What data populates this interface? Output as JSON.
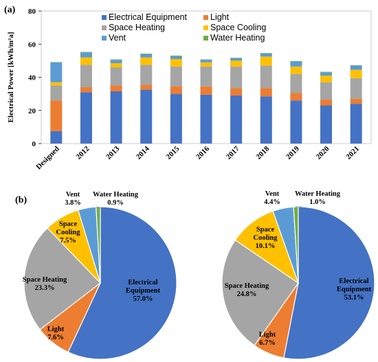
{
  "panel_labels": [
    "(a)",
    "(b)"
  ],
  "colors": {
    "Electrical Equipment": "#4472C4",
    "Light": "#ED7D31",
    "Space Heating": "#A5A5A5",
    "Space Cooling": "#FFC000",
    "Vent": "#5B9BD5",
    "Water Heating": "#70AD47"
  },
  "chart_data": [
    {
      "type": "bar",
      "stacked": true,
      "ylabel": "Electrical Power [kWh/m²a]",
      "ylim": [
        0,
        80
      ],
      "yticks": [
        0,
        20,
        40,
        60,
        80
      ],
      "grid": false,
      "legend": "top",
      "categories": [
        "Designed",
        "2012",
        "2013",
        "2014",
        "2015",
        "2016",
        "2017",
        "2018",
        "2019",
        "2020",
        "2021"
      ],
      "series": [
        {
          "name": "Electrical Equipment",
          "values": [
            7.5,
            31,
            31.5,
            32.5,
            30,
            29.5,
            29,
            28.5,
            26,
            23,
            24
          ]
        },
        {
          "name": "Light",
          "values": [
            18.5,
            3,
            3.5,
            3,
            4.5,
            5,
            4.5,
            5,
            4.5,
            3.5,
            3
          ]
        },
        {
          "name": "Space Heating",
          "values": [
            9,
            13.5,
            11,
            12,
            12,
            12,
            13,
            13.5,
            11.5,
            10.5,
            12.5
          ]
        },
        {
          "name": "Space Cooling",
          "values": [
            2,
            4.5,
            2.5,
            4.5,
            4.5,
            2.5,
            3.5,
            5.5,
            4.5,
            4,
            5
          ]
        },
        {
          "name": "Vent",
          "values": [
            12,
            3,
            2,
            2,
            1.8,
            1.5,
            1.5,
            1.8,
            3,
            2,
            2.5
          ]
        },
        {
          "name": "Water Heating",
          "values": [
            0.2,
            0.3,
            0.3,
            0.3,
            0.3,
            0.3,
            0.3,
            0.3,
            0.3,
            0.3,
            0.3
          ]
        }
      ]
    },
    {
      "type": "pie",
      "labels": [
        "Electrical Equipment",
        "Light",
        "Space Heating",
        "Space Cooling",
        "Vent",
        "Water Heating"
      ],
      "values": [
        57.0,
        7.6,
        23.3,
        7.5,
        3.8,
        0.9
      ],
      "label_text": [
        [
          "Electrical",
          "Equipment",
          "57.0%"
        ],
        [
          "Light",
          "7.6%"
        ],
        [
          "Space Heating",
          "23.3%"
        ],
        [
          "Space",
          "Cooling",
          "7.5%"
        ],
        [
          "Vent",
          "3.8%"
        ],
        [
          "Water Heating",
          "0.9%"
        ]
      ]
    },
    {
      "type": "pie",
      "labels": [
        "Electrical Equipment",
        "Light",
        "Space Heating",
        "Space Cooling",
        "Vent",
        "Water Heating"
      ],
      "values": [
        53.1,
        6.7,
        24.8,
        10.1,
        4.4,
        1.0
      ],
      "label_text": [
        [
          "Electrical",
          "Equipment",
          "53.1%"
        ],
        [
          "Light",
          "6.7%"
        ],
        [
          "Space Heating",
          "24.8%"
        ],
        [
          "Space",
          "Cooling",
          "10.1%"
        ],
        [
          "Vent",
          "4.4%"
        ],
        [
          "Water Heating",
          "1.0%"
        ]
      ]
    }
  ]
}
